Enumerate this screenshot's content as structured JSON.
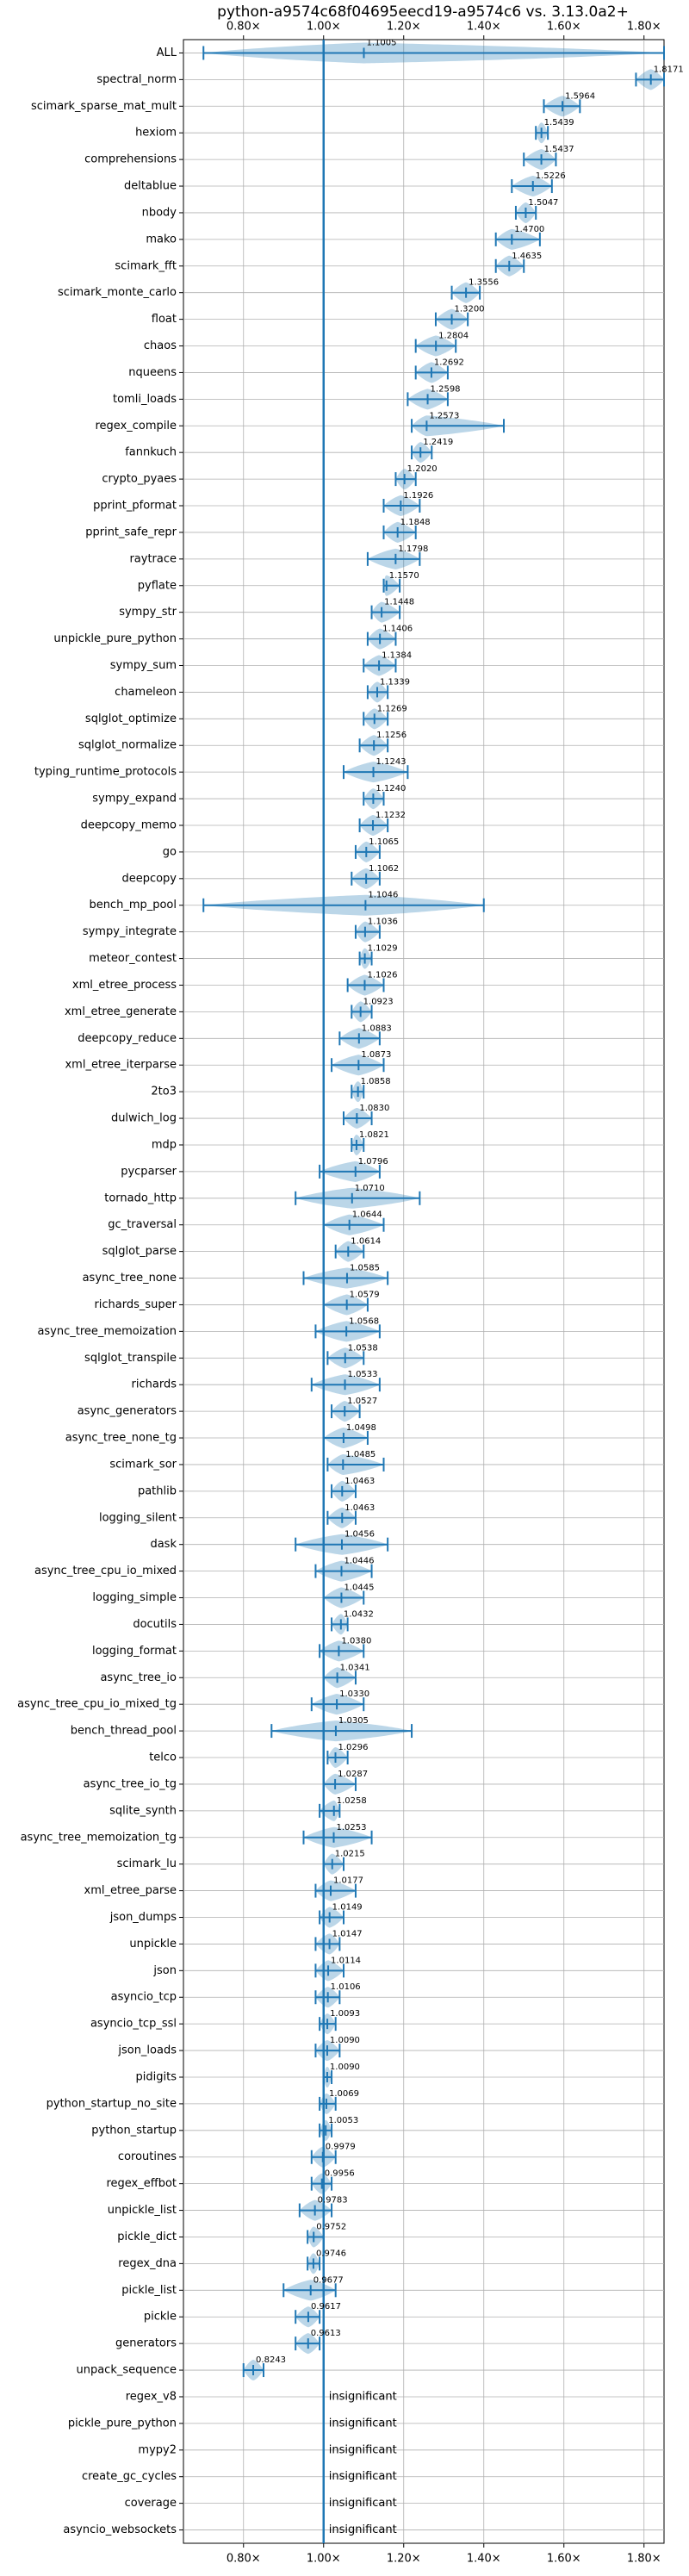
{
  "chart_data": {
    "type": "violin",
    "title": "python-a9574c68f04695eecd19-a9574c6 vs. 3.13.0a2+",
    "color": "#1f77b4",
    "reference_line": 1,
    "grid": true,
    "xlim": [
      0.65,
      1.85
    ],
    "xticks": [
      {
        "value": 0.8,
        "label": "0.80×"
      },
      {
        "value": 1.0,
        "label": "1.00×"
      },
      {
        "value": 1.2,
        "label": "1.20×"
      },
      {
        "value": 1.4,
        "label": "1.40×"
      },
      {
        "value": 1.6,
        "label": "1.60×"
      },
      {
        "value": 1.8,
        "label": "1.80×"
      }
    ],
    "categories": [
      "ALL",
      "spectral_norm",
      "scimark_sparse_mat_mult",
      "hexiom",
      "comprehensions",
      "deltablue",
      "nbody",
      "mako",
      "scimark_fft",
      "scimark_monte_carlo",
      "float",
      "chaos",
      "nqueens",
      "tomli_loads",
      "regex_compile",
      "fannkuch",
      "crypto_pyaes",
      "pprint_pformat",
      "pprint_safe_repr",
      "raytrace",
      "pyflate",
      "sympy_str",
      "unpickle_pure_python",
      "sympy_sum",
      "chameleon",
      "sqlglot_optimize",
      "sqlglot_normalize",
      "typing_runtime_protocols",
      "sympy_expand",
      "deepcopy_memo",
      "go",
      "deepcopy",
      "bench_mp_pool",
      "sympy_integrate",
      "meteor_contest",
      "xml_etree_process",
      "xml_etree_generate",
      "deepcopy_reduce",
      "xml_etree_iterparse",
      "2to3",
      "dulwich_log",
      "mdp",
      "pycparser",
      "tornado_http",
      "gc_traversal",
      "sqlglot_parse",
      "async_tree_none",
      "richards_super",
      "async_tree_memoization",
      "sqlglot_transpile",
      "richards",
      "async_generators",
      "async_tree_none_tg",
      "scimark_sor",
      "pathlib",
      "logging_silent",
      "dask",
      "async_tree_cpu_io_mixed",
      "logging_simple",
      "docutils",
      "logging_format",
      "async_tree_io",
      "async_tree_cpu_io_mixed_tg",
      "bench_thread_pool",
      "telco",
      "async_tree_io_tg",
      "sqlite_synth",
      "async_tree_memoization_tg",
      "scimark_lu",
      "xml_etree_parse",
      "json_dumps",
      "unpickle",
      "json",
      "asyncio_tcp",
      "asyncio_tcp_ssl",
      "json_loads",
      "pidigits",
      "python_startup_no_site",
      "python_startup",
      "coroutines",
      "regex_effbot",
      "unpickle_list",
      "pickle_dict",
      "regex_dna",
      "pickle_list",
      "pickle",
      "generators",
      "unpack_sequence",
      "regex_v8",
      "pickle_pure_python",
      "mypy2",
      "create_gc_cycles",
      "coverage",
      "asyncio_websockets"
    ],
    "values": [
      1.1005,
      1.8171,
      1.5964,
      1.5439,
      1.5437,
      1.5226,
      1.5047,
      1.47,
      1.4635,
      1.3556,
      1.32,
      1.2804,
      1.2692,
      1.2598,
      1.2573,
      1.2419,
      1.202,
      1.1926,
      1.1848,
      1.1798,
      1.157,
      1.1448,
      1.1406,
      1.1384,
      1.1339,
      1.1269,
      1.1256,
      1.1243,
      1.124,
      1.1232,
      1.1065,
      1.1062,
      1.1046,
      1.1036,
      1.1029,
      1.1026,
      1.0923,
      1.0883,
      1.0873,
      1.0858,
      1.083,
      1.0821,
      1.0796,
      1.071,
      1.0644,
      1.0614,
      1.0585,
      1.0579,
      1.0568,
      1.0538,
      1.0533,
      1.0527,
      1.0498,
      1.0485,
      1.0463,
      1.0463,
      1.0456,
      1.0446,
      1.0445,
      1.0432,
      1.038,
      1.0341,
      1.033,
      1.0305,
      1.0296,
      1.0287,
      1.0258,
      1.0253,
      1.0215,
      1.0177,
      1.0149,
      1.0147,
      1.0114,
      1.0106,
      1.0093,
      1.009,
      1.009,
      1.0069,
      1.0053,
      0.9979,
      0.9956,
      0.9783,
      0.9752,
      0.9746,
      0.9677,
      0.9617,
      0.9613,
      0.8243,
      null,
      null,
      null,
      null,
      null,
      null
    ],
    "value_labels": [
      "1.1005",
      "1.8171",
      "1.5964",
      "1.5439",
      "1.5437",
      "1.5226",
      "1.5047",
      "1.4700",
      "1.4635",
      "1.3556",
      "1.3200",
      "1.2804",
      "1.2692",
      "1.2598",
      "1.2573",
      "1.2419",
      "1.2020",
      "1.1926",
      "1.1848",
      "1.1798",
      "1.1570",
      "1.1448",
      "1.1406",
      "1.1384",
      "1.1339",
      "1.1269",
      "1.1256",
      "1.1243",
      "1.1240",
      "1.1232",
      "1.1065",
      "1.1062",
      "1.1046",
      "1.1036",
      "1.1029",
      "1.1026",
      "1.0923",
      "1.0883",
      "1.0873",
      "1.0858",
      "1.0830",
      "1.0821",
      "1.0796",
      "1.0710",
      "1.0644",
      "1.0614",
      "1.0585",
      "1.0579",
      "1.0568",
      "1.0538",
      "1.0533",
      "1.0527",
      "1.0498",
      "1.0485",
      "1.0463",
      "1.0463",
      "1.0456",
      "1.0446",
      "1.0445",
      "1.0432",
      "1.0380",
      "1.0341",
      "1.0330",
      "1.0305",
      "1.0296",
      "1.0287",
      "1.0258",
      "1.0253",
      "1.0215",
      "1.0177",
      "1.0149",
      "1.0147",
      "1.0114",
      "1.0106",
      "1.0093",
      "1.0090",
      "1.0090",
      "1.0069",
      "1.0053",
      "0.9979",
      "0.9956",
      "0.9783",
      "0.9752",
      "0.9746",
      "0.9677",
      "0.9617",
      "0.9613",
      "0.8243",
      "insignificant",
      "insignificant",
      "insignificant",
      "insignificant",
      "insignificant",
      "insignificant"
    ],
    "mins": [
      0.7,
      1.78,
      1.55,
      1.53,
      1.5,
      1.47,
      1.48,
      1.43,
      1.43,
      1.32,
      1.28,
      1.23,
      1.23,
      1.21,
      1.22,
      1.22,
      1.18,
      1.15,
      1.15,
      1.11,
      1.15,
      1.12,
      1.11,
      1.1,
      1.11,
      1.1,
      1.09,
      1.05,
      1.1,
      1.09,
      1.08,
      1.07,
      0.7,
      1.08,
      1.09,
      1.06,
      1.07,
      1.04,
      1.02,
      1.07,
      1.05,
      1.07,
      0.99,
      0.93,
      1.0,
      1.03,
      0.95,
      1.0,
      0.98,
      1.01,
      0.97,
      1.02,
      1.0,
      1.01,
      1.02,
      1.01,
      0.93,
      0.98,
      1.0,
      1.02,
      0.99,
      1.0,
      0.97,
      0.87,
      1.01,
      1.0,
      0.99,
      0.95,
      1.0,
      0.98,
      0.99,
      0.98,
      0.98,
      0.98,
      0.99,
      0.98,
      1.0,
      0.99,
      0.99,
      0.97,
      0.97,
      0.94,
      0.96,
      0.96,
      0.9,
      0.93,
      0.93,
      0.8,
      null,
      null,
      null,
      null,
      null,
      null
    ],
    "maxs": [
      1.85,
      1.85,
      1.64,
      1.56,
      1.58,
      1.57,
      1.53,
      1.54,
      1.5,
      1.39,
      1.36,
      1.33,
      1.31,
      1.31,
      1.45,
      1.27,
      1.23,
      1.24,
      1.23,
      1.24,
      1.19,
      1.19,
      1.18,
      1.18,
      1.16,
      1.16,
      1.16,
      1.21,
      1.15,
      1.16,
      1.14,
      1.14,
      1.4,
      1.14,
      1.12,
      1.15,
      1.12,
      1.14,
      1.15,
      1.1,
      1.12,
      1.1,
      1.14,
      1.24,
      1.15,
      1.1,
      1.16,
      1.11,
      1.14,
      1.1,
      1.14,
      1.09,
      1.11,
      1.15,
      1.08,
      1.08,
      1.16,
      1.12,
      1.1,
      1.06,
      1.1,
      1.08,
      1.1,
      1.22,
      1.06,
      1.08,
      1.04,
      1.12,
      1.05,
      1.08,
      1.05,
      1.04,
      1.05,
      1.04,
      1.03,
      1.04,
      1.02,
      1.03,
      1.02,
      1.03,
      1.02,
      1.02,
      1.0,
      0.99,
      1.03,
      0.99,
      0.99,
      0.85,
      null,
      null,
      null,
      null,
      null,
      null
    ]
  }
}
